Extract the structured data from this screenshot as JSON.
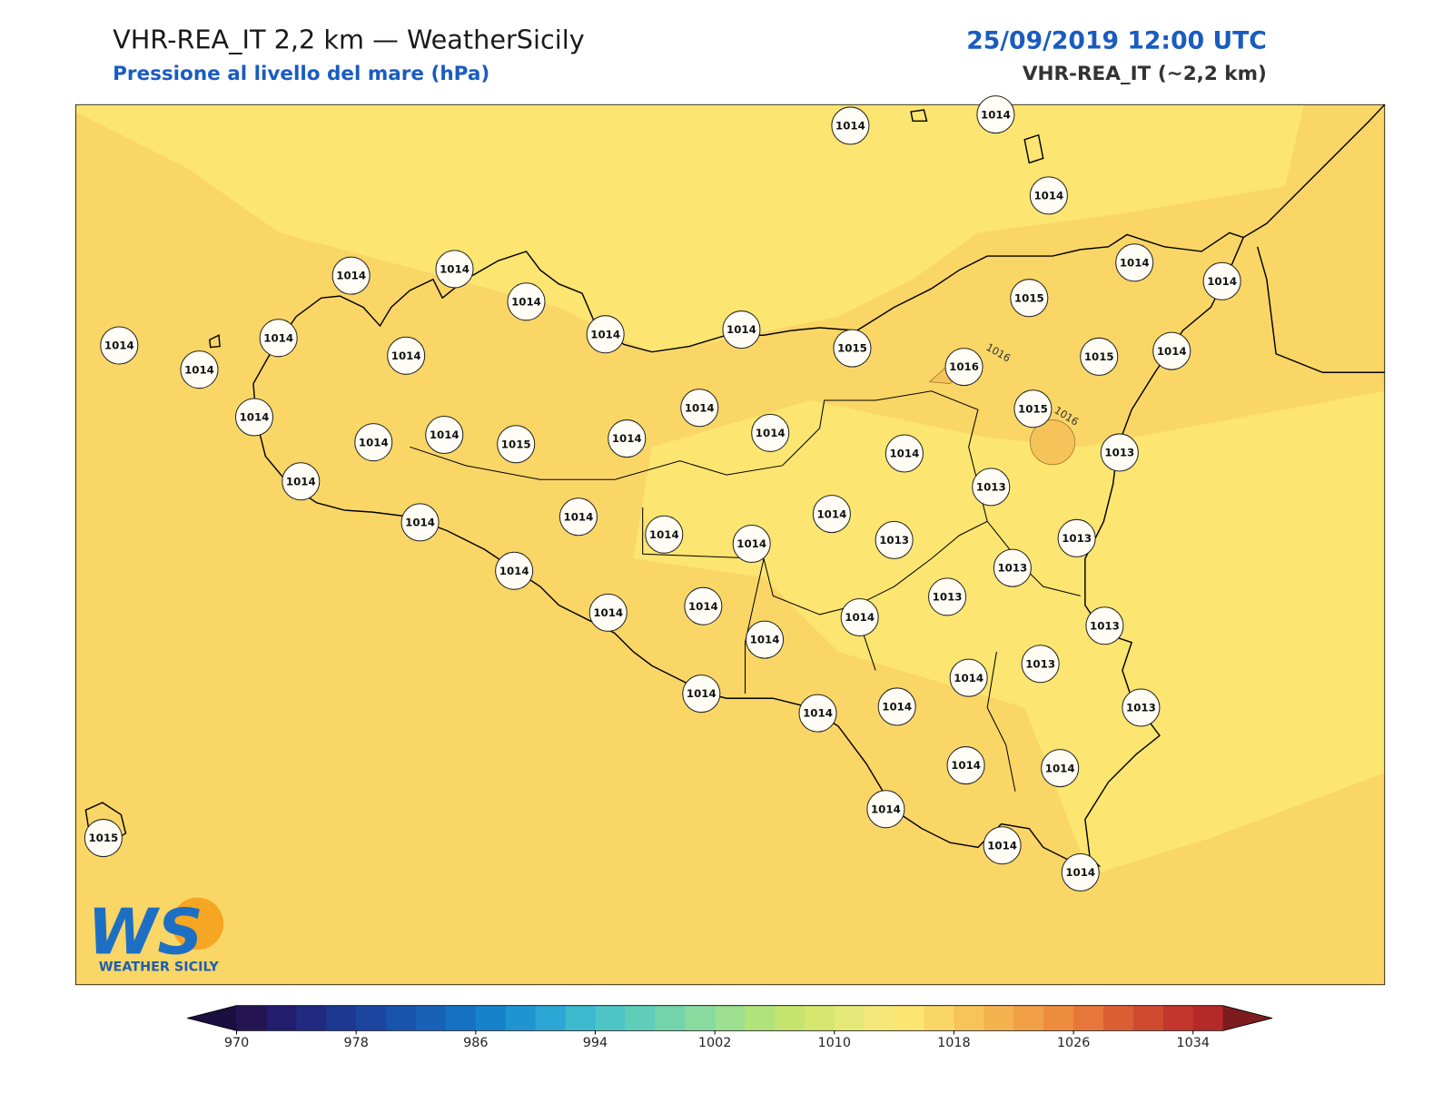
{
  "header": {
    "title": "VHR-REA_IT 2,2 km — WeatherSicily",
    "subtitle": "Pressione al livello del mare (hPa)",
    "datetime": "25/09/2019 12:00 UTC",
    "model": "VHR-REA_IT (~2,2 km)"
  },
  "stations": [
    1014,
    1014,
    1014,
    1014,
    1014,
    1015,
    1015,
    1014,
    1014,
    1014,
    1014,
    1014,
    1014,
    1015,
    1016,
    1015,
    1013,
    1014,
    1014,
    1014,
    1014,
    1014,
    1014,
    1014,
    1015,
    1014,
    1014,
    1014,
    1014,
    1013,
    1013,
    1014,
    1014,
    1014,
    1014,
    1014,
    1014,
    1013,
    1013,
    1013,
    1014,
    1014,
    1014,
    1014,
    1014,
    1013,
    1013,
    1014,
    1014,
    1014,
    1014,
    1013,
    1014,
    1014,
    1014,
    1014,
    1014,
    1015
  ],
  "contour_labels": [
    1016,
    1016
  ],
  "logo": {
    "text": "WS",
    "tagline": "WEATHER SICILY"
  },
  "colorbar": {
    "range": [
      970,
      1036
    ],
    "step": 2,
    "ticks": [
      970,
      978,
      986,
      994,
      1002,
      1010,
      1018,
      1026,
      1034
    ],
    "colors": [
      "#241552",
      "#221d6c",
      "#1f2a80",
      "#1d3891",
      "#1b469f",
      "#1954ac",
      "#1762b7",
      "#1572c2",
      "#1682ca",
      "#1f94d0",
      "#2ca6d4",
      "#3cb8cf",
      "#4ec5c6",
      "#60cdba",
      "#73d4ac",
      "#88da9e",
      "#9cdf8e",
      "#b0e37a",
      "#c4e46d",
      "#d6e76f",
      "#e4e97a",
      "#f5e879",
      "#fce570",
      "#fad667",
      "#f7c45a",
      "#f4b24e",
      "#f19f45",
      "#ed8c3d",
      "#e6763a",
      "#dc5f34",
      "#d04a30",
      "#c3362c",
      "#b42a28"
    ],
    "extend_colors": [
      "#1b0f40",
      "#7c1c1f"
    ]
  }
}
